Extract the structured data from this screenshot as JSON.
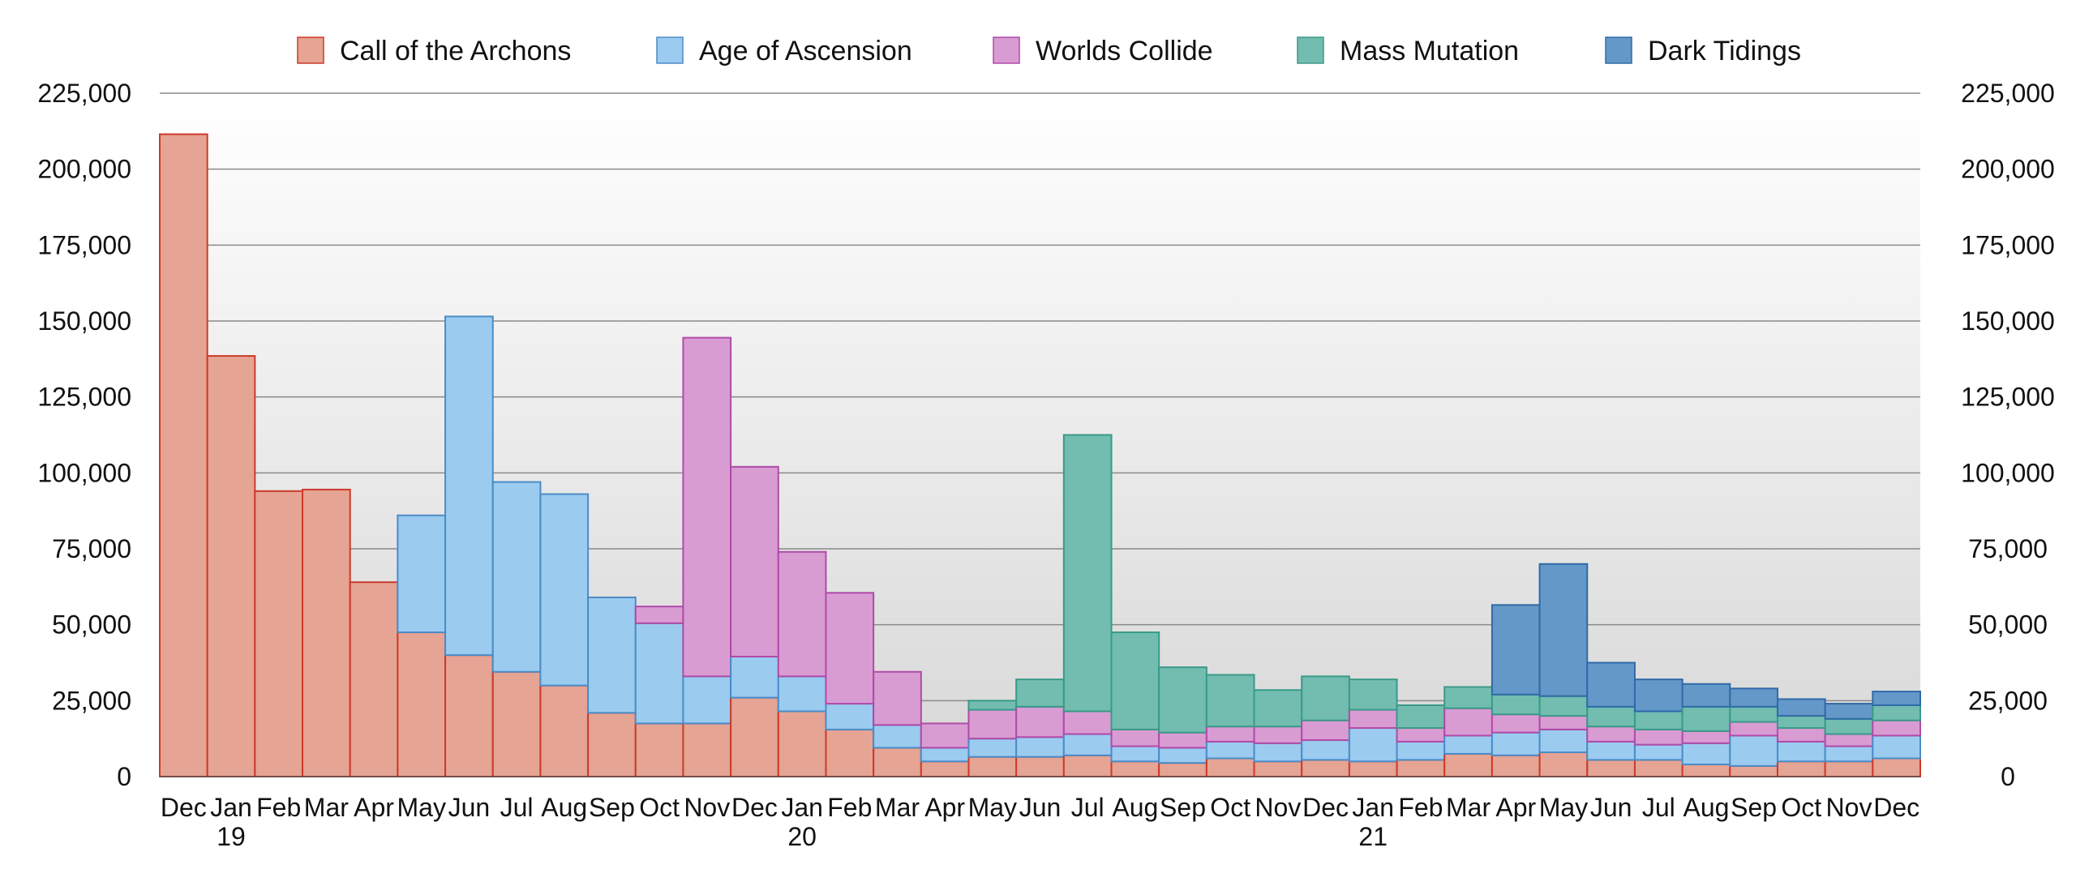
{
  "chart_data": {
    "type": "bar",
    "stacked": true,
    "title": "",
    "xlabel": "",
    "ylabel": "",
    "ylim": [
      0,
      225000
    ],
    "y_ticks": [
      0,
      25000,
      50000,
      75000,
      100000,
      125000,
      150000,
      175000,
      200000,
      225000
    ],
    "y_tick_labels": [
      "0",
      "25,000",
      "50,000",
      "75,000",
      "100,000",
      "125,000",
      "150,000",
      "175,000",
      "200,000",
      "225,000"
    ],
    "dual_y_axis": true,
    "grid": true,
    "legend_position": "top",
    "categories": [
      "Dec",
      "Jan",
      "Feb",
      "Mar",
      "Apr",
      "May",
      "Jun",
      "Jul",
      "Aug",
      "Sep",
      "Oct",
      "Nov",
      "Dec",
      "Jan",
      "Feb",
      "Mar",
      "Apr",
      "May",
      "Jun",
      "Jul",
      "Aug",
      "Sep",
      "Oct",
      "Nov",
      "Dec",
      "Jan",
      "Feb",
      "Mar",
      "Apr",
      "May",
      "Jun",
      "Jul",
      "Aug",
      "Sep",
      "Oct",
      "Nov",
      "Dec"
    ],
    "year_labels": [
      {
        "category_index": 1,
        "label": "19"
      },
      {
        "category_index": 13,
        "label": "20"
      },
      {
        "category_index": 25,
        "label": "21"
      }
    ],
    "series": [
      {
        "name": "Call of the Archons",
        "color": "#e5a494",
        "stroke": "#cc3a2a",
        "values": [
          211500,
          138500,
          94000,
          94500,
          64000,
          47500,
          40000,
          34500,
          30000,
          21000,
          17500,
          17500,
          26000,
          21500,
          15500,
          9500,
          5000,
          6500,
          6500,
          7000,
          5000,
          4500,
          6000,
          5000,
          5500,
          5000,
          5500,
          7500,
          7000,
          8000,
          5500,
          5500,
          4000,
          3500,
          5000,
          5000,
          6000
        ]
      },
      {
        "name": "Age of Ascension",
        "color": "#9ccbf0",
        "stroke": "#4a8cc7",
        "values": [
          0,
          0,
          0,
          0,
          0,
          38500,
          111500,
          62500,
          63000,
          38000,
          33000,
          15500,
          13500,
          11500,
          8500,
          7500,
          4500,
          6000,
          6500,
          7000,
          5000,
          5000,
          5500,
          6000,
          6500,
          11000,
          6000,
          6000,
          7500,
          7500,
          6000,
          5000,
          7000,
          10000,
          6500,
          5000,
          7500
        ]
      },
      {
        "name": "Worlds Collide",
        "color": "#d89cd3",
        "stroke": "#b04aa8",
        "values": [
          0,
          0,
          0,
          0,
          0,
          0,
          0,
          0,
          0,
          0,
          5500,
          111500,
          62500,
          41000,
          36500,
          17500,
          8000,
          9500,
          10000,
          7500,
          5500,
          5000,
          5000,
          5500,
          6500,
          6000,
          4500,
          9000,
          6000,
          4500,
          5000,
          5000,
          4000,
          4500,
          4500,
          4000,
          5000
        ]
      },
      {
        "name": "Mass Mutation",
        "color": "#72bdb0",
        "stroke": "#3a9a88",
        "values": [
          0,
          0,
          0,
          0,
          0,
          0,
          0,
          0,
          0,
          0,
          0,
          0,
          0,
          0,
          0,
          0,
          0,
          3000,
          9000,
          91000,
          32000,
          21500,
          17000,
          12000,
          14500,
          10000,
          7500,
          7000,
          6500,
          6500,
          6500,
          6000,
          8000,
          5000,
          4000,
          5000,
          5000
        ]
      },
      {
        "name": "Dark Tidings",
        "color": "#6498c8",
        "stroke": "#2f6aa8",
        "values": [
          0,
          0,
          0,
          0,
          0,
          0,
          0,
          0,
          0,
          0,
          0,
          0,
          0,
          0,
          0,
          0,
          0,
          0,
          0,
          0,
          0,
          0,
          0,
          0,
          0,
          0,
          0,
          0,
          29500,
          43500,
          14500,
          10500,
          7500,
          6000,
          5500,
          5000,
          4500
        ]
      }
    ]
  }
}
